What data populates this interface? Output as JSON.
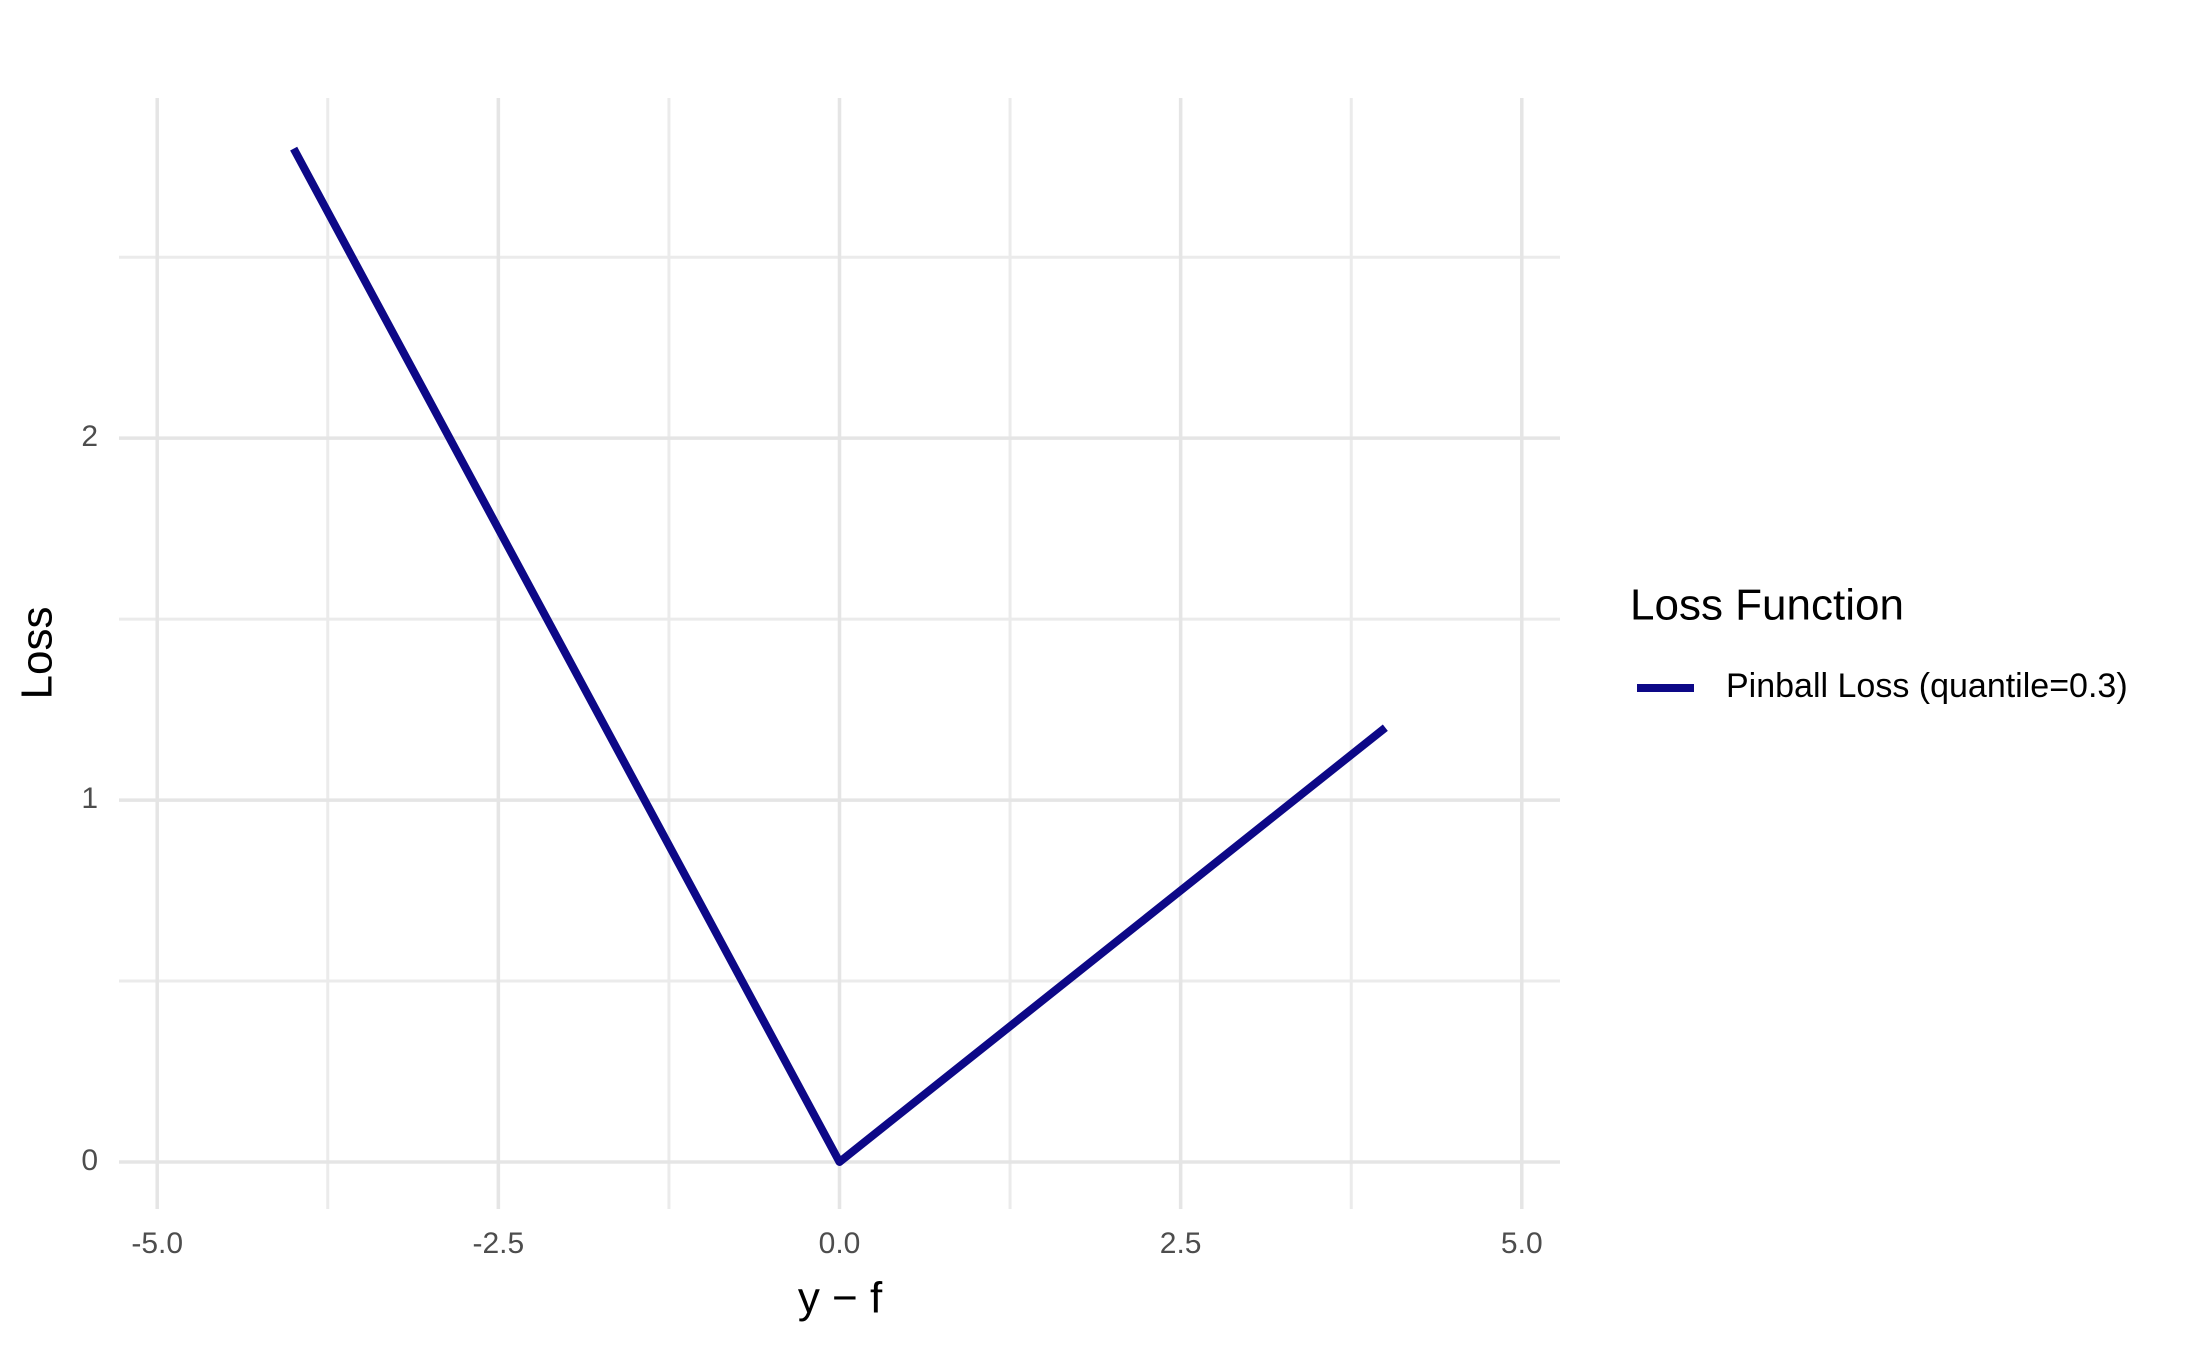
{
  "chart_data": {
    "type": "line",
    "x_label": "y − f",
    "y_label": "Loss",
    "x": [
      -4,
      0,
      4
    ],
    "series": [
      {
        "name": "Pinball Loss (quantile=0.3)",
        "color": "#0d0887",
        "values": [
          2.8,
          0,
          1.2
        ]
      }
    ],
    "legend_title": "Loss Function",
    "legend_position": "right",
    "xlim": [
      -5.28,
      5.28
    ],
    "ylim": [
      -0.13,
      2.94
    ],
    "xticks": [
      {
        "value": -5,
        "label": "-5.0"
      },
      {
        "value": -2.5,
        "label": "-2.5"
      },
      {
        "value": 0,
        "label": "0.0"
      },
      {
        "value": 2.5,
        "label": "2.5"
      },
      {
        "value": 5,
        "label": "5.0"
      }
    ],
    "yticks": [
      0,
      1,
      2
    ],
    "x_minor_ticks": [
      -3.75,
      -1.25,
      1.25,
      3.75
    ],
    "y_minor_ticks": [
      0.5,
      1.5,
      2.5
    ],
    "grid": true
  }
}
